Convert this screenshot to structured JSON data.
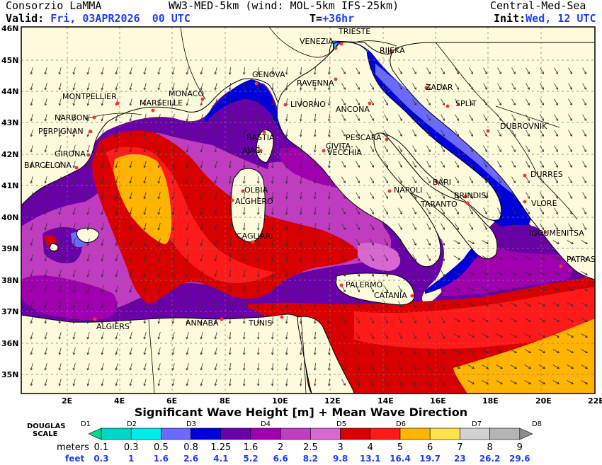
{
  "header": {
    "provider": "Consorzio LaMMA",
    "model": "WW3-MED-5km (wind: MOL-5km IFS-25km)",
    "region": "Central-Med-Sea",
    "valid_label": "Valid:",
    "valid_date": "Fri, 03APR2026",
    "valid_time": "00 UTC",
    "lead_label": "T=",
    "lead_value": "+36hr",
    "init_label": "Init:",
    "init_value": "Wed, 12 UTC"
  },
  "map": {
    "lat_labels": [
      "46N",
      "45N",
      "44N",
      "43N",
      "42N",
      "41N",
      "40N",
      "39N",
      "38N",
      "37N",
      "36N",
      "35N"
    ],
    "lon_labels": [
      "2E",
      "4E",
      "6E",
      "8E",
      "10E",
      "12E",
      "14E",
      "16E",
      "18E",
      "20E",
      "22E"
    ],
    "cities": [
      {
        "name": "TRIESTE"
      },
      {
        "name": "VENEZIA"
      },
      {
        "name": "RIJEKA"
      },
      {
        "name": "GENOVA"
      },
      {
        "name": "RAVENNA"
      },
      {
        "name": "ZADAR"
      },
      {
        "name": "MONTPELLIER"
      },
      {
        "name": "MONACO"
      },
      {
        "name": "MARSEILLE"
      },
      {
        "name": "LIVORNO"
      },
      {
        "name": "ANCONA"
      },
      {
        "name": "SPLIT"
      },
      {
        "name": "NARBON"
      },
      {
        "name": "DUBROVNIK"
      },
      {
        "name": "PERPIGNAN"
      },
      {
        "name": "BASTIA"
      },
      {
        "name": "PESCARA"
      },
      {
        "name": "GIRONA"
      },
      {
        "name": "AJAC."
      },
      {
        "name": "CIVITA-"
      },
      {
        "name": "VECCHIA"
      },
      {
        "name": "BARCELONA"
      },
      {
        "name": "DURRES"
      },
      {
        "name": "OLBIA"
      },
      {
        "name": "NAPOLI"
      },
      {
        "name": "BARI"
      },
      {
        "name": "BRINDISI"
      },
      {
        "name": "ALGHERO"
      },
      {
        "name": "TARANTO"
      },
      {
        "name": "VLORE"
      },
      {
        "name": "IGOUMENITSA"
      },
      {
        "name": "CAGLIARI"
      },
      {
        "name": "PATRAS"
      },
      {
        "name": "PALERMO"
      },
      {
        "name": "CATANIA"
      },
      {
        "name": "ALGIERS"
      },
      {
        "name": "ANNABA"
      },
      {
        "name": "TUNIS"
      }
    ]
  },
  "legend": {
    "title": "Significant Wave Height [m] + Mean Wave Direction",
    "scale_label_1": "DOUGLAS",
    "scale_label_2": "SCALE",
    "meters_label": "meters",
    "feet_label": "feet",
    "douglas": [
      "D1",
      "D2",
      "D3",
      "D4",
      "D5",
      "D6",
      "D7",
      "D8"
    ],
    "meters": [
      "0.1",
      "0.3",
      "0.5",
      "0.8",
      "1.25",
      "1.6",
      "2",
      "2.5",
      "3",
      "4",
      "5",
      "6",
      "7",
      "8",
      "9"
    ],
    "feet": [
      "0.3",
      "1",
      "1.6",
      "2.6",
      "4.1",
      "5.2",
      "6.6",
      "8.2",
      "9.8",
      "13.1",
      "16.4",
      "19.7",
      "23",
      "26.2",
      "29.6"
    ],
    "colors": [
      "#00e08a",
      "#00d6c8",
      "#00ecec",
      "#6a6aff",
      "#0000d8",
      "#6a00a8",
      "#a000b0",
      "#c03cc0",
      "#d868d0",
      "#d80000",
      "#ff1a1a",
      "#ffb400",
      "#ffe24a",
      "#d2d2d2",
      "#b4b4b4",
      "#8c8c8c"
    ]
  },
  "colors": {
    "land": "#fefbdc",
    "border": "#000000",
    "header_accent": "#1f3cff"
  }
}
